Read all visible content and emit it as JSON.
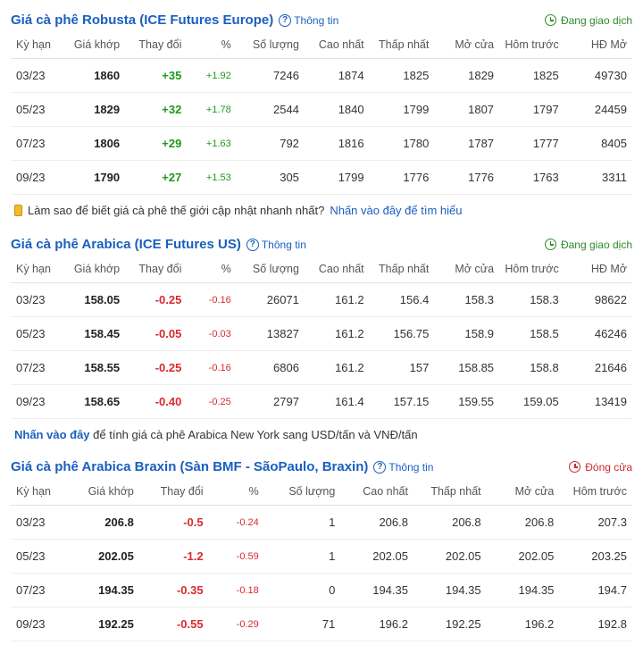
{
  "colors": {
    "link": "#1a5fbf",
    "pos": "#1d9a1d",
    "neg": "#d9292e",
    "trading": "#2e8b2e",
    "closed": "#cc2b2b"
  },
  "info_label": "Thông tin",
  "status_trading": "Đang giao dịch",
  "status_closed": "Đóng cửa",
  "columns_full": [
    "Kỳ hạn",
    "Giá khớp",
    "Thay đổi",
    "%",
    "Số lượng",
    "Cao nhất",
    "Thấp nhất",
    "Mở cửa",
    "Hôm trước",
    "HĐ Mở"
  ],
  "columns_short": [
    "Kỳ hạn",
    "Giá khớp",
    "Thay đổi",
    "%",
    "Số lượng",
    "Cao nhất",
    "Thấp nhất",
    "Mở cửa",
    "Hôm trước"
  ],
  "sections": [
    {
      "title": "Giá cà phê Robusta (ICE Futures Europe)",
      "status": "trading",
      "cols": "full",
      "rows": [
        {
          "term": "03/23",
          "price": "1860",
          "chg": "+35",
          "pct": "+1.92",
          "vol": "7246",
          "high": "1874",
          "low": "1825",
          "open": "1829",
          "prev": "1825",
          "oi": "49730",
          "dir": "pos"
        },
        {
          "term": "05/23",
          "price": "1829",
          "chg": "+32",
          "pct": "+1.78",
          "vol": "2544",
          "high": "1840",
          "low": "1799",
          "open": "1807",
          "prev": "1797",
          "oi": "24459",
          "dir": "pos"
        },
        {
          "term": "07/23",
          "price": "1806",
          "chg": "+29",
          "pct": "+1.63",
          "vol": "792",
          "high": "1816",
          "low": "1780",
          "open": "1787",
          "prev": "1777",
          "oi": "8405",
          "dir": "pos"
        },
        {
          "term": "09/23",
          "price": "1790",
          "chg": "+27",
          "pct": "+1.53",
          "vol": "305",
          "high": "1799",
          "low": "1776",
          "open": "1776",
          "prev": "1763",
          "oi": "3311",
          "dir": "pos"
        }
      ],
      "after": {
        "type": "bar",
        "text": "Làm sao để biết giá cà phê thế giới cập nhật nhanh nhất?",
        "link": "Nhấn vào đây để tìm hiểu"
      }
    },
    {
      "title": "Giá cà phê Arabica (ICE Futures US)",
      "status": "trading",
      "cols": "full",
      "rows": [
        {
          "term": "03/23",
          "price": "158.05",
          "chg": "-0.25",
          "pct": "-0.16",
          "vol": "26071",
          "high": "161.2",
          "low": "156.4",
          "open": "158.3",
          "prev": "158.3",
          "oi": "98622",
          "dir": "neg"
        },
        {
          "term": "05/23",
          "price": "158.45",
          "chg": "-0.05",
          "pct": "-0.03",
          "vol": "13827",
          "high": "161.2",
          "low": "156.75",
          "open": "158.9",
          "prev": "158.5",
          "oi": "46246",
          "dir": "neg"
        },
        {
          "term": "07/23",
          "price": "158.55",
          "chg": "-0.25",
          "pct": "-0.16",
          "vol": "6806",
          "high": "161.2",
          "low": "157",
          "open": "158.85",
          "prev": "158.8",
          "oi": "21646",
          "dir": "neg"
        },
        {
          "term": "09/23",
          "price": "158.65",
          "chg": "-0.40",
          "pct": "-0.25",
          "vol": "2797",
          "high": "161.4",
          "low": "157.15",
          "open": "159.55",
          "prev": "159.05",
          "oi": "13419",
          "dir": "neg"
        }
      ],
      "after": {
        "type": "note",
        "link": "Nhấn vào đây",
        "text": " để tính giá cà phê Arabica New York sang USD/tấn và VNĐ/tấn"
      }
    },
    {
      "title": "Giá cà phê Arabica Braxin (Sàn BMF - SãoPaulo, Braxin)",
      "status": "closed",
      "cols": "short",
      "rows": [
        {
          "term": "03/23",
          "price": "206.8",
          "chg": "-0.5",
          "pct": "-0.24",
          "vol": "1",
          "high": "206.8",
          "low": "206.8",
          "open": "206.8",
          "prev": "207.3",
          "dir": "neg"
        },
        {
          "term": "05/23",
          "price": "202.05",
          "chg": "-1.2",
          "pct": "-0.59",
          "vol": "1",
          "high": "202.05",
          "low": "202.05",
          "open": "202.05",
          "prev": "203.25",
          "dir": "neg"
        },
        {
          "term": "07/23",
          "price": "194.35",
          "chg": "-0.35",
          "pct": "-0.18",
          "vol": "0",
          "high": "194.35",
          "low": "194.35",
          "open": "194.35",
          "prev": "194.7",
          "dir": "neg"
        },
        {
          "term": "09/23",
          "price": "192.25",
          "chg": "-0.55",
          "pct": "-0.29",
          "vol": "71",
          "high": "196.2",
          "low": "192.25",
          "open": "196.2",
          "prev": "192.8",
          "dir": "neg"
        }
      ]
    }
  ]
}
